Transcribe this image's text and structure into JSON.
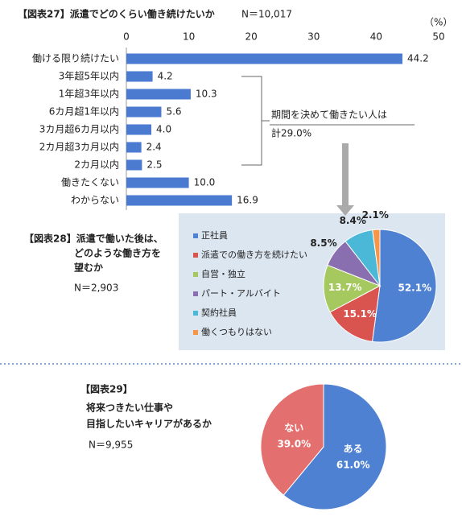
{
  "chart_data": [
    {
      "type": "bar",
      "orientation": "horizontal",
      "title": "【図表27】派遣でどのくらい働き続けたいか",
      "subtitle": "N＝10,017",
      "x_label": "（%）",
      "categories": [
        "働ける限り続けたい",
        "3年超5年以内",
        "1年超3年以内",
        "6カ月超1年以内",
        "3カ月超6カ月以内",
        "2カ月超3カ月以内",
        "2カ月以内",
        "働きたくない",
        "わからない"
      ],
      "values": [
        44.2,
        4.2,
        10.3,
        5.6,
        4.0,
        2.4,
        2.5,
        10.0,
        16.9
      ],
      "value_labels": [
        "44.2",
        "4.2",
        "10.3",
        "5.6",
        "4.0",
        "2.4",
        "2.5",
        "10.0",
        "16.9"
      ],
      "color": "#4a7bd0",
      "xlim": [
        0,
        50
      ],
      "xticks": [
        0,
        10,
        20,
        30,
        40,
        50
      ],
      "annotations": [
        "期間を決めて働きたい人は",
        "計29.0%"
      ]
    },
    {
      "type": "pie",
      "title": [
        "【図表28】派遣で働いた後は、",
        "どのような働き方を",
        "望むか"
      ],
      "subtitle": "N＝2,903",
      "categories": [
        "正社員",
        "派遣での働き方を続けたい",
        "自営・独立",
        "パート・アルバイト",
        "契約社員",
        "働くつもりはない"
      ],
      "values": [
        52.1,
        15.1,
        13.7,
        8.5,
        8.4,
        2.1
      ],
      "value_labels": [
        "52.1%",
        "15.1%",
        "13.7%",
        "8.5%",
        "8.4%",
        "2.1%"
      ],
      "colors": [
        "#4f81d3",
        "#d9534f",
        "#a5c85f",
        "#8a6fb0",
        "#4bb8d8",
        "#f79646"
      ],
      "legend": "left"
    },
    {
      "type": "pie",
      "title": [
        "【図表29】",
        "将来つきたい仕事や",
        "目指したいキャリアがあるか"
      ],
      "subtitle": "N＝9,955",
      "categories": [
        "ある",
        "ない"
      ],
      "values": [
        61.0,
        39.0
      ],
      "value_labels": [
        "61.0%",
        "39.0%"
      ],
      "colors": [
        "#4f81d3",
        "#e46f6f"
      ]
    }
  ]
}
